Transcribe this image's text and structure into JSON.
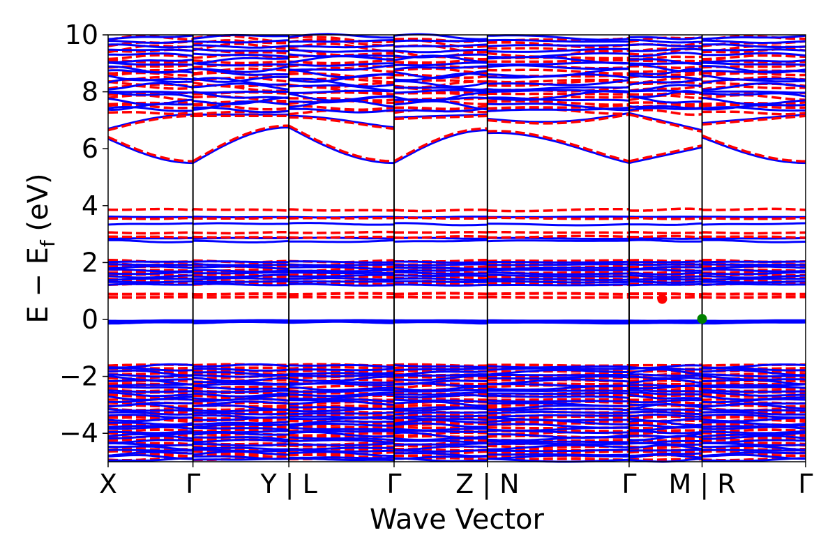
{
  "chart_data": {
    "type": "line",
    "xlabel": "Wave Vector",
    "ylabel_main": "E − E",
    "ylabel_sub": "f",
    "ylabel_unit": " (eV)",
    "ylim": [
      -5,
      10
    ],
    "yticks": [
      -4,
      -2,
      0,
      2,
      4,
      6,
      8,
      10
    ],
    "ytick_labels": [
      "−4",
      "−2",
      "0",
      "2",
      "4",
      "6",
      "8",
      "10"
    ],
    "xlim": [
      0,
      8.22
    ],
    "kpoints": [
      {
        "x": 0.0,
        "label": "X"
      },
      {
        "x": 1.0,
        "label": "Γ"
      },
      {
        "x": 2.13,
        "label": "Y | L"
      },
      {
        "x": 3.37,
        "label": "Γ"
      },
      {
        "x": 4.47,
        "label": "Z | N"
      },
      {
        "x": 6.14,
        "label": "Γ"
      },
      {
        "x": 7.0,
        "label": "M | R"
      },
      {
        "x": 8.22,
        "label": "Γ"
      }
    ],
    "segment_boundaries": [
      1.0,
      2.13,
      3.37,
      4.47,
      6.14,
      7.0
    ],
    "series": [
      {
        "color": "#0000ff",
        "style": "solid"
      },
      {
        "color": "#ff0000",
        "style": "dashed"
      }
    ],
    "markers": [
      {
        "x": 6.53,
        "y": 0.72,
        "color": "#ff0000"
      },
      {
        "x": 7.0,
        "y": 0.02,
        "color": "#008000"
      }
    ]
  }
}
